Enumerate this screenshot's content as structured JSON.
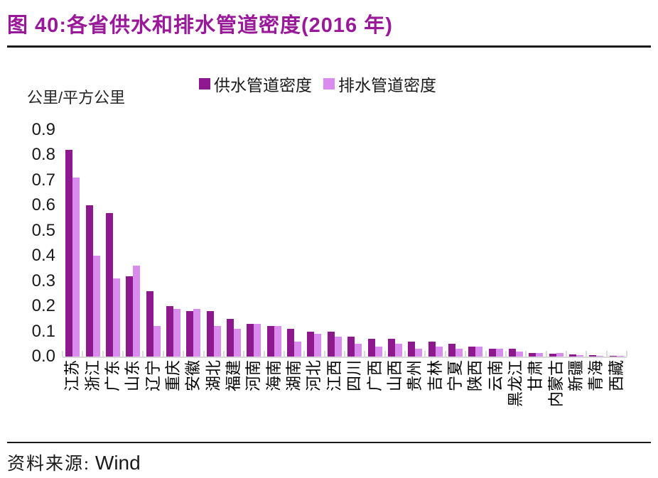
{
  "header": {
    "title": "图 40:各省供水和排水管道密度(2016 年)"
  },
  "footer": {
    "source_label": "资料来源:",
    "source_value": "Wind"
  },
  "colors": {
    "title": "#99199A",
    "supply_bar": "#8E188E",
    "drainage_bar": "#DA8CEE",
    "axis": "#D9D9D9",
    "text": "#1a1a1a"
  },
  "chart_data": {
    "type": "bar",
    "title": "各省供水和排水管道密度(2016 年)",
    "unit_label": "公里/平方公里",
    "xlabel": "",
    "ylabel": "公里/平方公里",
    "ylim": [
      0,
      0.9
    ],
    "yticks": [
      "0.9",
      "0.8",
      "0.7",
      "0.6",
      "0.5",
      "0.4",
      "0.3",
      "0.2",
      "0.1",
      "0.0"
    ],
    "grid": false,
    "legend_position": "top",
    "legend": [
      {
        "name": "供水管道密度",
        "color": "#8E188E"
      },
      {
        "name": "排水管道密度",
        "color": "#DA8CEE"
      }
    ],
    "categories": [
      "江苏",
      "浙江",
      "广东",
      "山东",
      "辽宁",
      "重庆",
      "安徽",
      "湖北",
      "福建",
      "河南",
      "海南",
      "湖南",
      "河北",
      "江西",
      "四川",
      "广西",
      "山西",
      "贵州",
      "吉林",
      "宁夏",
      "陕西",
      "云南",
      "黑龙江",
      "甘肃",
      "内蒙古",
      "新疆",
      "青海",
      "西藏"
    ],
    "series": [
      {
        "name": "供水管道密度",
        "values": [
          0.82,
          0.6,
          0.57,
          0.32,
          0.26,
          0.2,
          0.18,
          0.18,
          0.15,
          0.13,
          0.12,
          0.11,
          0.1,
          0.1,
          0.08,
          0.07,
          0.07,
          0.06,
          0.06,
          0.05,
          0.04,
          0.03,
          0.03,
          0.015,
          0.012,
          0.008,
          0.006,
          0.003
        ]
      },
      {
        "name": "排水管道密度",
        "values": [
          0.71,
          0.4,
          0.31,
          0.36,
          0.12,
          0.19,
          0.19,
          0.12,
          0.11,
          0.13,
          0.12,
          0.06,
          0.09,
          0.08,
          0.05,
          0.04,
          0.05,
          0.03,
          0.04,
          0.03,
          0.04,
          0.03,
          0.02,
          0.015,
          0.015,
          0.006,
          0.004,
          0.002
        ]
      }
    ]
  }
}
